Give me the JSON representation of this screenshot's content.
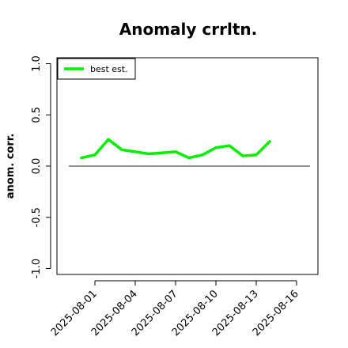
{
  "chart_data": {
    "type": "line",
    "title": "Anomaly crrltn.",
    "xlabel": "",
    "ylabel": "anom. corr.",
    "x": [
      "2025-07-31",
      "2025-08-01",
      "2025-08-02",
      "2025-08-03",
      "2025-08-04",
      "2025-08-05",
      "2025-08-06",
      "2025-08-07",
      "2025-08-08",
      "2025-08-09",
      "2025-08-10",
      "2025-08-11",
      "2025-08-12",
      "2025-08-13",
      "2025-08-14"
    ],
    "series": [
      {
        "name": "best est.",
        "color": "#00ee00",
        "values": [
          0.08,
          0.11,
          0.26,
          0.16,
          0.14,
          0.12,
          0.13,
          0.14,
          0.08,
          0.11,
          0.18,
          0.2,
          0.1,
          0.11,
          0.24
        ]
      }
    ],
    "x_ticks": [
      "2025-08-01",
      "2025-08-04",
      "2025-08-07",
      "2025-08-10",
      "2025-08-13",
      "2025-08-16"
    ],
    "ylim": [
      -1.0,
      1.0
    ],
    "y_ticks": [
      "-1.0",
      "-0.5",
      "0.0",
      "0.5",
      "1.0"
    ],
    "reference_line": 0.0,
    "grid": false,
    "legend_position": "top-left"
  }
}
